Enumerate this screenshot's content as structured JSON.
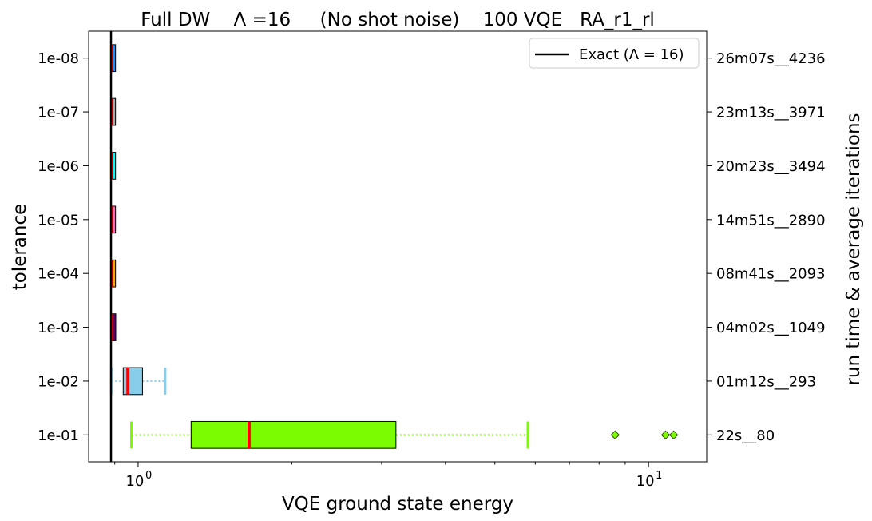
{
  "chart_data": {
    "type": "boxplot",
    "title": "Full DW    Λ =16     (No shot noise)    100 VQE   RA_r1_rl",
    "xlabel": "VQE ground state energy",
    "ylabel": "tolerance",
    "ylabel_right": "run time & average iterations",
    "xscale": "log",
    "xlim": [
      0.8,
      13
    ],
    "x_major_ticks": [
      {
        "value": 1,
        "label": "10^0"
      },
      {
        "value": 10,
        "label": "10^1"
      }
    ],
    "x_tick_base": "10",
    "exact": {
      "value": 0.885,
      "label": "Exact (Λ = 16)"
    },
    "legend_position": "top-right",
    "categories": [
      "1e-01",
      "1e-02",
      "1e-03",
      "1e-04",
      "1e-05",
      "1e-06",
      "1e-07",
      "1e-08"
    ],
    "right_labels": [
      "22s__80",
      "01m12s__293",
      "04m02s__1049",
      "08m41s__2093",
      "14m51s__2890",
      "20m23s__3494",
      "23m13s__3971",
      "26m07s__4236"
    ],
    "boxes": [
      {
        "tolerance": "1e-01",
        "whisker_low": 0.97,
        "q1": 1.27,
        "median": 1.65,
        "q3": 3.2,
        "whisker_high": 5.8,
        "fliers": [
          8.6,
          10.8,
          11.2
        ],
        "color": "#7cfc00",
        "whisker_style": "dotted"
      },
      {
        "tolerance": "1e-02",
        "whisker_low": 0.886,
        "q1": 0.935,
        "median": 0.955,
        "q3": 1.02,
        "whisker_high": 1.13,
        "fliers": [],
        "color": "#87ceeb",
        "whisker_style": "dotted"
      },
      {
        "tolerance": "1e-03",
        "whisker_low": 0.886,
        "q1": 0.888,
        "median": 0.889,
        "q3": 0.898,
        "whisker_high": 0.905,
        "fliers": [],
        "color": "#4b0082",
        "whisker_style": "solid"
      },
      {
        "tolerance": "1e-04",
        "whisker_low": 0.886,
        "q1": 0.887,
        "median": 0.888,
        "q3": 0.9,
        "whisker_high": 0.9,
        "fliers": [],
        "color": "#ffa500",
        "whisker_style": "solid"
      },
      {
        "tolerance": "1e-05",
        "whisker_low": 0.886,
        "q1": 0.887,
        "median": 0.888,
        "q3": 0.9,
        "whisker_high": 0.9,
        "fliers": [],
        "color": "#ff69b4",
        "whisker_style": "solid"
      },
      {
        "tolerance": "1e-06",
        "whisker_low": 0.886,
        "q1": 0.887,
        "median": 0.888,
        "q3": 0.9,
        "whisker_high": 0.9,
        "fliers": [],
        "color": "#00ffff",
        "whisker_style": "solid"
      },
      {
        "tolerance": "1e-07",
        "whisker_low": 0.886,
        "q1": 0.887,
        "median": 0.888,
        "q3": 0.9,
        "whisker_high": 0.9,
        "fliers": [],
        "color": "#a9a9a9",
        "whisker_style": "solid"
      },
      {
        "tolerance": "1e-08",
        "whisker_low": 0.886,
        "q1": 0.887,
        "median": 0.888,
        "q3": 0.9,
        "whisker_high": 0.9,
        "fliers": [],
        "color": "#1e90ff",
        "whisker_style": "solid"
      }
    ],
    "median_color": "#ff0000",
    "grid": false
  }
}
